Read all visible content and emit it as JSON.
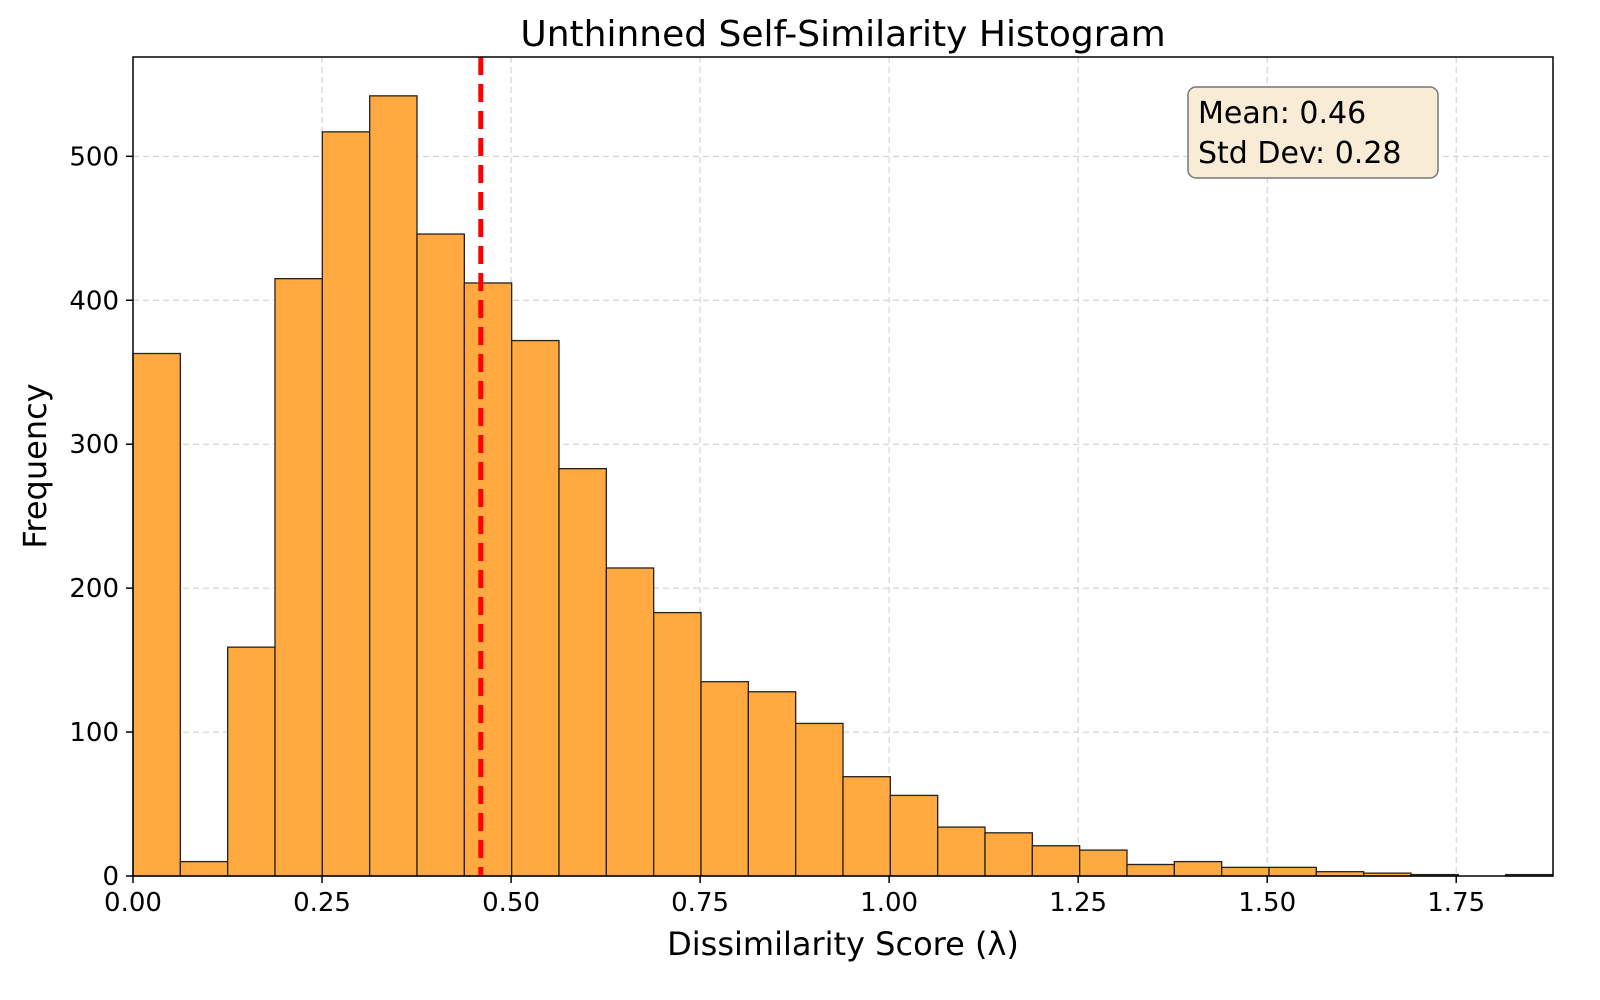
{
  "chart_data": {
    "type": "bar",
    "subtype": "histogram",
    "title": "Unthinned Self-Similarity Histogram",
    "xlabel": "Dissimilarity Score (λ)",
    "ylabel": "Frequency",
    "xlim": [
      0,
      1.878
    ],
    "ylim": [
      0,
      569
    ],
    "bin_start": 0,
    "bin_width": 0.0626,
    "values": [
      363,
      10,
      159,
      415,
      517,
      542,
      446,
      412,
      372,
      283,
      214,
      183,
      135,
      128,
      106,
      69,
      56,
      34,
      30,
      21,
      18,
      8,
      10,
      6,
      6,
      3,
      2,
      1,
      0,
      1
    ],
    "xticks": [
      0,
      0.25,
      0.5,
      0.75,
      1.0,
      1.25,
      1.5,
      1.75
    ],
    "xtick_labels": [
      "0.00",
      "0.25",
      "0.50",
      "0.75",
      "1.00",
      "1.25",
      "1.50",
      "1.75"
    ],
    "yticks": [
      0,
      100,
      200,
      300,
      400,
      500
    ],
    "ytick_labels": [
      "0",
      "100",
      "200",
      "300",
      "400",
      "500"
    ],
    "grid": true,
    "bar_color": "#FFA940",
    "edge_color": "#222222",
    "mean_line": {
      "x": 0.46,
      "color": "#FF0000",
      "style": "dashed"
    },
    "annotation": {
      "lines": [
        "Mean: 0.46",
        "Std Dev: 0.28"
      ],
      "placement": "top-right",
      "background": "#F8ECD6"
    }
  }
}
